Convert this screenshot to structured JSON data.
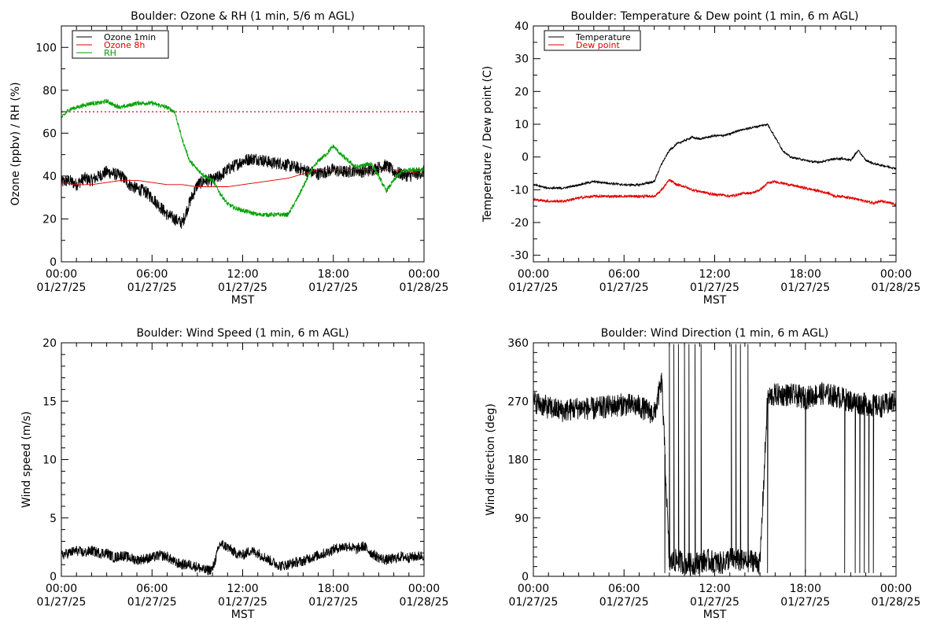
{
  "colors": {
    "black": "#000000",
    "red": "#e00000",
    "green": "#00a000"
  },
  "time_ticks": [
    "00:00",
    "06:00",
    "12:00",
    "18:00",
    "00:00"
  ],
  "date_ticks": [
    "01/27/25",
    "01/27/25",
    "01/27/25",
    "01/27/25",
    "01/28/25"
  ],
  "xlabel": "MST",
  "chart_data": [
    {
      "id": "ozone",
      "type": "line",
      "title": "Boulder: Ozone & RH (1 min, 5/6 m AGL)",
      "xlabel": "MST",
      "ylabel": "Ozone (ppbv) / RH (%)",
      "x_units": "hours since 00:00 MST 01/27/25",
      "xlim": [
        0,
        24
      ],
      "ylim": [
        0,
        110
      ],
      "yticks": [
        0,
        20,
        40,
        60,
        80,
        100
      ],
      "yminor": 10,
      "legend": "top-left",
      "reference_line": {
        "value": 70,
        "style": "dotted",
        "color": "red"
      },
      "series": [
        {
          "name": "Ozone 1min",
          "color": "black",
          "x": [
            0,
            0.5,
            1,
            1.5,
            2,
            2.5,
            3,
            3.5,
            4,
            4.5,
            5,
            5.5,
            6,
            6.5,
            7,
            7.5,
            8,
            8.5,
            9,
            9.5,
            10,
            10.5,
            11,
            11.5,
            12,
            12.5,
            13,
            13.5,
            14,
            14.5,
            15,
            15.5,
            16,
            16.5,
            17,
            17.5,
            18,
            18.5,
            19,
            19.5,
            20,
            20.5,
            21,
            21.5,
            22,
            22.5,
            23,
            23.5,
            24
          ],
          "values": [
            37,
            38,
            36,
            39,
            38,
            40,
            42,
            41,
            40,
            36,
            34,
            33,
            30,
            26,
            22,
            20,
            18,
            28,
            36,
            38,
            38,
            40,
            43,
            45,
            47,
            48,
            48,
            47,
            46,
            46,
            45,
            44,
            43,
            42,
            41,
            42,
            43,
            42,
            42,
            43,
            42,
            43,
            44,
            45,
            42,
            41,
            40,
            41,
            42
          ],
          "noise": 3
        },
        {
          "name": "Ozone 8h",
          "color": "red",
          "x": [
            0,
            1,
            2,
            3,
            4,
            5,
            6,
            7,
            8,
            9,
            10,
            11,
            12,
            13,
            14,
            15,
            16,
            17,
            18,
            19,
            20,
            21,
            22,
            23,
            24
          ],
          "values": [
            37,
            36,
            36,
            37,
            38,
            38,
            37,
            36,
            36,
            35,
            35,
            35,
            36,
            37,
            38,
            39,
            41,
            43,
            43,
            43,
            43,
            43,
            43,
            42,
            41
          ],
          "noise": 0
        },
        {
          "name": "RH",
          "color": "green",
          "x": [
            0,
            0.5,
            1,
            1.5,
            2,
            2.5,
            3,
            3.5,
            4,
            4.5,
            5,
            5.5,
            6,
            6.5,
            7,
            7.5,
            8,
            8.5,
            9,
            9.5,
            10,
            10.5,
            11,
            11.5,
            12,
            12.5,
            13,
            13.5,
            14,
            14.5,
            15,
            15.5,
            16,
            16.5,
            17,
            17.5,
            18,
            18.5,
            19,
            19.5,
            20,
            20.5,
            21,
            21.5,
            22,
            22.5,
            23,
            23.5,
            24
          ],
          "values": [
            67,
            71,
            72,
            73,
            74,
            74,
            75,
            73,
            72,
            73,
            74,
            74,
            74,
            73,
            72,
            70,
            57,
            47,
            43,
            40,
            38,
            32,
            27,
            25,
            24,
            23,
            22,
            22,
            22,
            22,
            22,
            28,
            35,
            42,
            47,
            50,
            54,
            50,
            47,
            44,
            45,
            46,
            40,
            33,
            38,
            42,
            43,
            43,
            43
          ],
          "noise": 1
        }
      ]
    },
    {
      "id": "temp",
      "type": "line",
      "title": "Boulder: Temperature & Dew point (1 min, 6 m AGL)",
      "xlabel": "MST",
      "ylabel": "Temperature / Dew point (C)",
      "x_units": "hours since 00:00 MST 01/27/25",
      "xlim": [
        0,
        24
      ],
      "ylim": [
        -32,
        40
      ],
      "yticks": [
        -30,
        -20,
        -10,
        0,
        10,
        20,
        30,
        40
      ],
      "yminor": 5,
      "legend": "top-left",
      "series": [
        {
          "name": "Temperature",
          "color": "black",
          "x": [
            0,
            1,
            2,
            3,
            4,
            5,
            6,
            7,
            8,
            8.5,
            9,
            9.5,
            10,
            10.5,
            11,
            11.5,
            12,
            12.5,
            13,
            13.5,
            14,
            14.5,
            15,
            15.5,
            16,
            16.5,
            17,
            17.5,
            18,
            18.5,
            19,
            19.5,
            20,
            20.5,
            21,
            21.5,
            22,
            22.5,
            23,
            23.5,
            24
          ],
          "values": [
            -8.5,
            -9.5,
            -9.5,
            -8.5,
            -7.5,
            -8,
            -8.5,
            -8.5,
            -7.5,
            -2,
            2,
            4,
            5,
            6,
            5.5,
            6,
            6.5,
            6.5,
            7,
            8,
            8.5,
            9,
            9.5,
            10,
            6,
            2,
            0,
            -0.5,
            -1,
            -1.5,
            -1.5,
            -1,
            -0.5,
            -0.5,
            -1,
            2,
            -1,
            -2,
            -2.5,
            -3,
            -3.5
          ],
          "noise": 0.3
        },
        {
          "name": "Dew point",
          "color": "red",
          "x": [
            0,
            1,
            2,
            3,
            4,
            5,
            6,
            7,
            8,
            8.5,
            9,
            9.5,
            10,
            10.5,
            11,
            11.5,
            12,
            12.5,
            13,
            13.5,
            14,
            14.5,
            15,
            15.5,
            16,
            16.5,
            17,
            17.5,
            18,
            18.5,
            19,
            19.5,
            20,
            20.5,
            21,
            21.5,
            22,
            22.5,
            23,
            23.5,
            24
          ],
          "values": [
            -13,
            -13.5,
            -13.5,
            -12.5,
            -12,
            -12,
            -12,
            -12,
            -12,
            -10,
            -7,
            -8.5,
            -9,
            -10,
            -10.5,
            -11,
            -11.5,
            -11.5,
            -12,
            -11.5,
            -11,
            -11,
            -10,
            -8,
            -7.5,
            -8,
            -8.5,
            -9,
            -9.5,
            -10,
            -10.5,
            -11,
            -12,
            -12,
            -12.5,
            -13,
            -13.5,
            -14,
            -13.5,
            -14,
            -14.5
          ],
          "noise": 0.4
        }
      ]
    },
    {
      "id": "wspd",
      "type": "line",
      "title": "Boulder: Wind Speed (1 min, 6 m AGL)",
      "xlabel": "MST",
      "ylabel": "Wind speed (m/s)",
      "x_units": "hours since 00:00 MST 01/27/25",
      "xlim": [
        0,
        24
      ],
      "ylim": [
        0,
        20
      ],
      "yticks": [
        0,
        5,
        10,
        15,
        20
      ],
      "yminor": 1,
      "series": [
        {
          "name": "",
          "color": "black",
          "x": [
            0,
            0.5,
            1,
            1.5,
            2,
            2.5,
            3,
            3.5,
            4,
            4.5,
            5,
            5.5,
            6,
            6.5,
            7,
            7.5,
            8,
            8.5,
            9,
            9.5,
            10,
            10.5,
            11,
            11.5,
            12,
            12.5,
            13,
            13.5,
            14,
            14.5,
            15,
            15.5,
            16,
            16.5,
            17,
            17.5,
            18,
            18.5,
            19,
            19.5,
            20,
            20.5,
            21,
            21.5,
            22,
            22.5,
            23,
            23.5,
            24
          ],
          "values": [
            1.8,
            2.0,
            2.2,
            2.0,
            2.2,
            2.0,
            2.0,
            1.6,
            1.8,
            1.6,
            1.4,
            1.5,
            1.6,
            1.8,
            1.7,
            1.2,
            1.0,
            1.0,
            0.8,
            0.5,
            0.6,
            2.8,
            2.5,
            2.0,
            1.8,
            2.2,
            2.0,
            1.6,
            1.2,
            0.9,
            1.0,
            1.2,
            1.3,
            1.6,
            1.8,
            2.0,
            2.3,
            2.5,
            2.6,
            2.3,
            2.6,
            2.0,
            1.6,
            1.4,
            1.5,
            1.7,
            1.6,
            1.7,
            1.8
          ],
          "noise": 0.45,
          "min": 0
        }
      ]
    },
    {
      "id": "wdir",
      "type": "line",
      "title": "Boulder: Wind Direction (1 min, 6 m AGL)",
      "xlabel": "MST",
      "ylabel": "Wind direction (deg)",
      "x_units": "hours since 00:00 MST 01/27/25",
      "xlim": [
        0,
        24
      ],
      "ylim": [
        0,
        360
      ],
      "yticks": [
        0,
        90,
        180,
        270,
        360
      ],
      "yminor": 15,
      "series": [
        {
          "name": "",
          "color": "black",
          "x": [
            0,
            1,
            2,
            3,
            4,
            5,
            6,
            7,
            8,
            8.5,
            9,
            9.5,
            10,
            10.5,
            11,
            11.5,
            12,
            12.5,
            13,
            13.5,
            14,
            14.5,
            15,
            15.5,
            16,
            17,
            18,
            19,
            20,
            21,
            22,
            23,
            24
          ],
          "values": [
            270,
            260,
            255,
            260,
            258,
            262,
            265,
            262,
            250,
            300,
            20,
            25,
            20,
            18,
            22,
            25,
            22,
            20,
            28,
            25,
            22,
            25,
            20,
            275,
            280,
            280,
            275,
            282,
            278,
            270,
            265,
            262,
            270
          ],
          "noise": 18,
          "min": 0,
          "max": 360,
          "spikes_at_hours": [
            8.7,
            9.0,
            9.3,
            9.6,
            10.0,
            10.3,
            10.7,
            11.1,
            13.1,
            13.4,
            13.7,
            14.2,
            15.5,
            18.0,
            20.6,
            21.3,
            21.6,
            21.9,
            22.2,
            22.5
          ]
        }
      ]
    }
  ]
}
